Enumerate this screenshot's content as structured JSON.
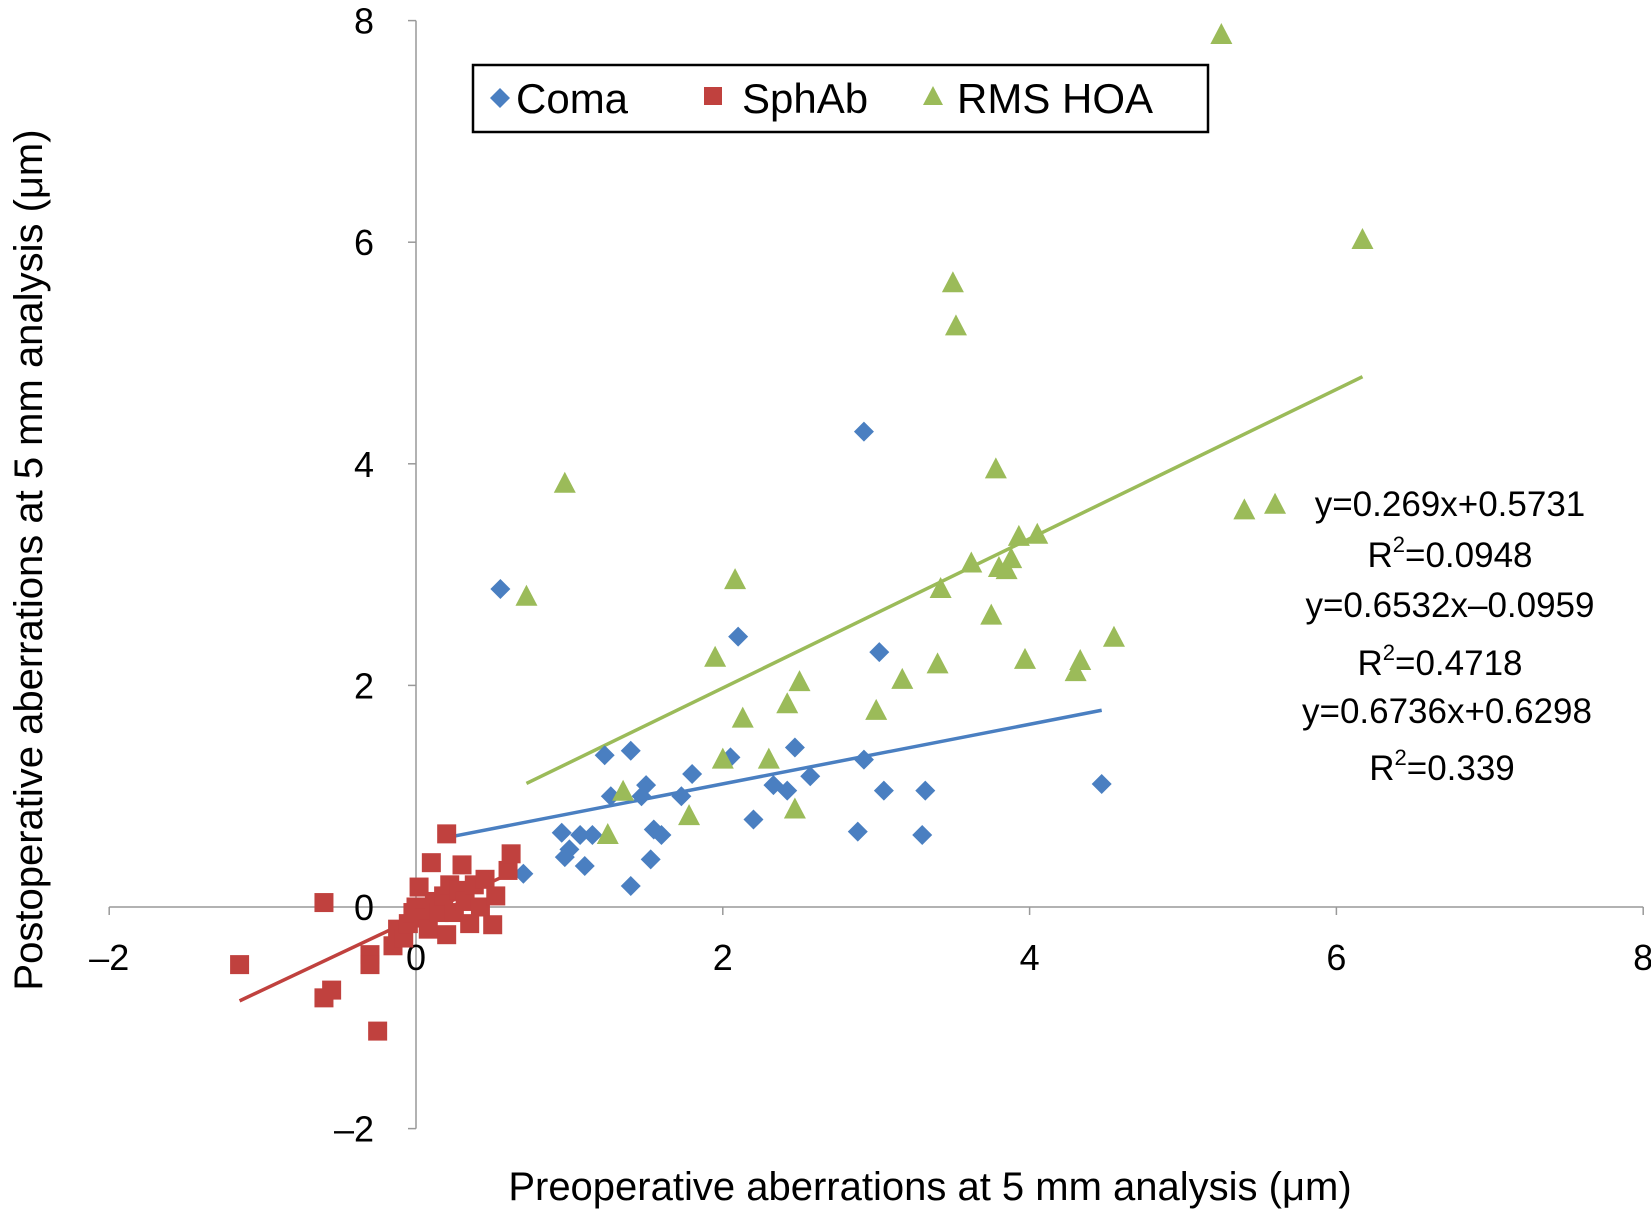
{
  "chart_data": {
    "type": "scatter",
    "title": "",
    "xlabel": "Preoperative aberrations at 5 mm analysis (μm)",
    "ylabel": "Postoperative aberrations at 5 mm analysis (μm)",
    "xlim": [
      -2,
      8
    ],
    "ylim": [
      -2,
      8
    ],
    "x_ticks": [
      "–2",
      "0",
      "2",
      "4",
      "6",
      "8"
    ],
    "y_ticks": [
      "–2",
      "0",
      "2",
      "4",
      "6",
      "8"
    ],
    "grid": false,
    "legend_position": "top",
    "series": [
      {
        "name": "Coma",
        "marker": "diamond",
        "color": "#4a7fc1",
        "points": [
          [
            0.55,
            2.87
          ],
          [
            0.7,
            0.3
          ],
          [
            0.95,
            0.67
          ],
          [
            0.97,
            0.45
          ],
          [
            1.0,
            0.52
          ],
          [
            1.07,
            0.65
          ],
          [
            1.1,
            0.37
          ],
          [
            1.15,
            0.65
          ],
          [
            1.23,
            1.37
          ],
          [
            1.27,
            1.0
          ],
          [
            1.4,
            1.41
          ],
          [
            1.4,
            0.19
          ],
          [
            1.47,
            1.0
          ],
          [
            1.5,
            1.1
          ],
          [
            1.53,
            0.43
          ],
          [
            1.55,
            0.7
          ],
          [
            1.6,
            0.65
          ],
          [
            1.73,
            1.0
          ],
          [
            1.8,
            1.2
          ],
          [
            2.05,
            1.35
          ],
          [
            2.1,
            2.44
          ],
          [
            2.2,
            0.79
          ],
          [
            2.33,
            1.1
          ],
          [
            2.42,
            1.05
          ],
          [
            2.47,
            1.44
          ],
          [
            2.57,
            1.18
          ],
          [
            2.88,
            0.68
          ],
          [
            2.92,
            1.33
          ],
          [
            2.92,
            4.29
          ],
          [
            3.02,
            2.3
          ],
          [
            3.05,
            1.05
          ],
          [
            3.3,
            0.65
          ],
          [
            3.32,
            1.05
          ],
          [
            4.47,
            1.11
          ]
        ],
        "trendline": {
          "x": [
            0.2,
            4.47
          ],
          "equation": "y=0.269x+0.5731",
          "r2_label": "R",
          "r2_value": "=0.0948"
        }
      },
      {
        "name": "SphAb",
        "marker": "square",
        "color": "#c0413e",
        "points": [
          [
            -1.15,
            -0.52
          ],
          [
            -0.6,
            -0.82
          ],
          [
            -0.55,
            -0.75
          ],
          [
            -0.6,
            0.04
          ],
          [
            -0.3,
            -0.43
          ],
          [
            -0.3,
            -0.52
          ],
          [
            -0.25,
            -1.12
          ],
          [
            -0.15,
            -0.35
          ],
          [
            -0.12,
            -0.2
          ],
          [
            -0.08,
            -0.28
          ],
          [
            -0.05,
            -0.15
          ],
          [
            -0.02,
            -0.05
          ],
          [
            0.0,
            0.0
          ],
          [
            0.02,
            0.18
          ],
          [
            0.05,
            -0.1
          ],
          [
            0.08,
            -0.2
          ],
          [
            0.1,
            0.4
          ],
          [
            0.12,
            0.05
          ],
          [
            0.15,
            -0.05
          ],
          [
            0.18,
            0.1
          ],
          [
            0.2,
            -0.25
          ],
          [
            0.2,
            0.66
          ],
          [
            0.22,
            0.2
          ],
          [
            0.25,
            -0.05
          ],
          [
            0.28,
            0.15
          ],
          [
            0.3,
            0.38
          ],
          [
            0.32,
            0.05
          ],
          [
            0.35,
            -0.15
          ],
          [
            0.38,
            0.2
          ],
          [
            0.42,
            0.0
          ],
          [
            0.45,
            0.25
          ],
          [
            0.5,
            -0.16
          ],
          [
            0.52,
            0.1
          ],
          [
            0.6,
            0.33
          ],
          [
            0.62,
            0.48
          ]
        ],
        "trendline": {
          "x": [
            -1.15,
            0.65
          ],
          "equation": "y=0.6532x–0.0959",
          "r2_label": "R",
          "r2_value": "=0.4718"
        }
      },
      {
        "name": "RMS HOA",
        "marker": "triangle",
        "color": "#9bbb59",
        "points": [
          [
            0.72,
            2.8
          ],
          [
            0.97,
            3.82
          ],
          [
            1.25,
            0.65
          ],
          [
            1.35,
            1.04
          ],
          [
            1.78,
            0.82
          ],
          [
            1.95,
            2.25
          ],
          [
            2.0,
            1.33
          ],
          [
            2.08,
            2.95
          ],
          [
            2.13,
            1.7
          ],
          [
            2.3,
            1.33
          ],
          [
            2.42,
            1.83
          ],
          [
            2.47,
            0.88
          ],
          [
            2.5,
            2.03
          ],
          [
            3.0,
            1.77
          ],
          [
            3.17,
            2.05
          ],
          [
            3.4,
            2.19
          ],
          [
            3.42,
            2.87
          ],
          [
            3.5,
            5.63
          ],
          [
            3.52,
            5.24
          ],
          [
            3.62,
            3.1
          ],
          [
            3.75,
            2.63
          ],
          [
            3.78,
            3.95
          ],
          [
            3.8,
            3.06
          ],
          [
            3.85,
            3.04
          ],
          [
            3.88,
            3.14
          ],
          [
            3.93,
            3.34
          ],
          [
            3.97,
            2.23
          ],
          [
            4.05,
            3.36
          ],
          [
            4.3,
            2.12
          ],
          [
            4.33,
            2.22
          ],
          [
            4.55,
            2.43
          ],
          [
            5.25,
            7.87
          ],
          [
            5.4,
            3.58
          ],
          [
            5.6,
            3.63
          ],
          [
            6.17,
            6.02
          ]
        ],
        "trendline": {
          "x": [
            0.72,
            6.17
          ],
          "equation": "y=0.6736x+0.6298",
          "r2_label": "R",
          "r2_value": "=0.339"
        }
      }
    ]
  }
}
